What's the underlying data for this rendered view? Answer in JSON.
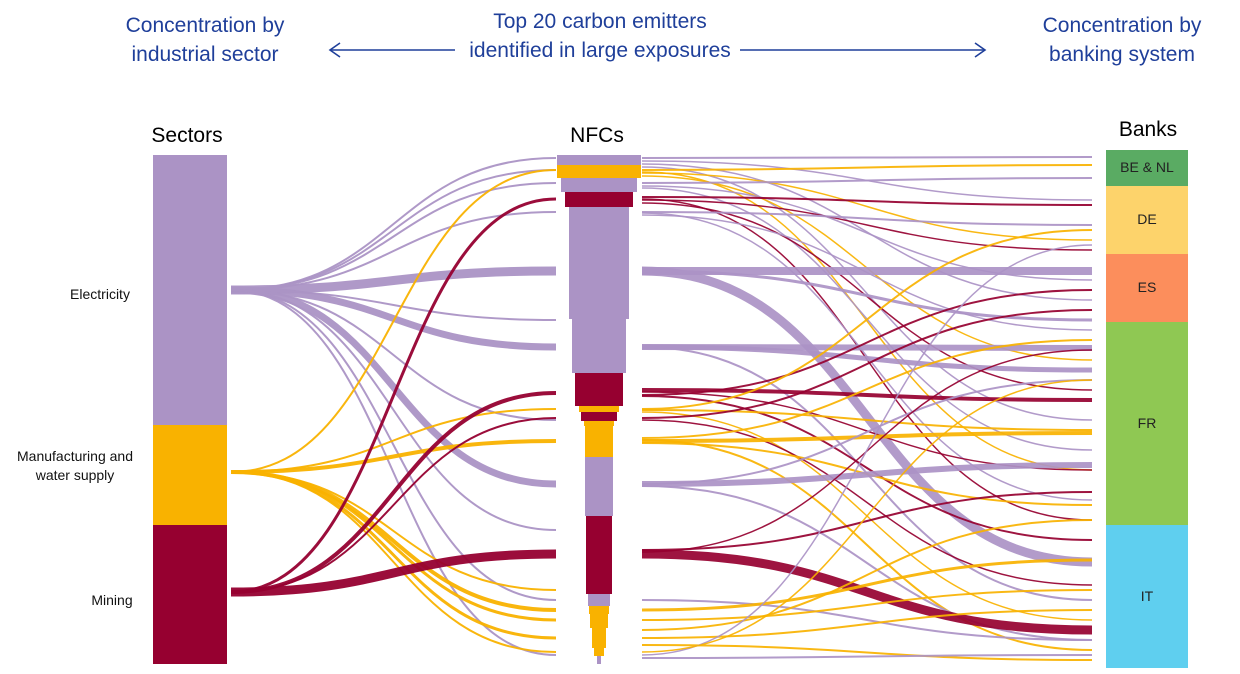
{
  "header": {
    "left": "Concentration by industrial sector",
    "center": "Top 20 carbon emitters identified in large exposures",
    "right": "Concentration by banking system"
  },
  "columns": {
    "sectors": "Sectors",
    "nfcs": "NFCs",
    "banks": "Banks"
  },
  "sectors": [
    {
      "key": "electricity",
      "label": "Electricity",
      "color": "#ab93c5"
    },
    {
      "key": "manufacturing",
      "label": "Manufacturing and water supply",
      "color": "#f9b200"
    },
    {
      "key": "mining",
      "label": "Mining",
      "color": "#960030"
    }
  ],
  "banks": [
    {
      "label": "BE & NL",
      "color": "#5aab63"
    },
    {
      "label": "DE",
      "color": "#fdd36b"
    },
    {
      "label": "ES",
      "color": "#fc8e5c"
    },
    {
      "label": "FR",
      "color": "#8fc853"
    },
    {
      "label": "IT",
      "color": "#5fcfef"
    }
  ]
}
